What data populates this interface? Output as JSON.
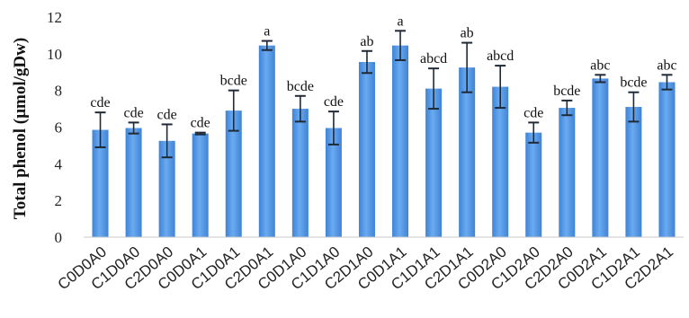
{
  "chart_data": {
    "type": "bar",
    "ylabel": "Total phenol (µmol/gDw)",
    "ylim": [
      0,
      12
    ],
    "yticks": [
      0,
      2,
      4,
      6,
      8,
      10,
      12
    ],
    "grid": false,
    "bar_color": "#4a90e2",
    "error_bar_color": "#1f2a36",
    "categories": [
      "C0D0A0",
      "C1D0A0",
      "C2D0A0",
      "C0D0A1",
      "C1D0A1",
      "C2D0A1",
      "C0D1A0",
      "C1D1A0",
      "C2D1A0",
      "C0D1A1",
      "C1D1A1",
      "C2D1A1",
      "C0D2A0",
      "C1D2A0",
      "C2D2A0",
      "C0D2A1",
      "C1D2A1",
      "C2D2A1"
    ],
    "values": [
      5.85,
      5.95,
      5.25,
      5.65,
      6.9,
      10.45,
      7.0,
      5.95,
      9.55,
      10.45,
      8.1,
      9.25,
      8.2,
      5.7,
      7.05,
      8.65,
      7.1,
      8.45
    ],
    "errors": [
      0.95,
      0.3,
      0.9,
      0.05,
      1.1,
      0.25,
      0.7,
      0.9,
      0.6,
      0.8,
      1.1,
      1.35,
      1.15,
      0.55,
      0.4,
      0.2,
      0.8,
      0.4
    ],
    "significance": [
      "cde",
      "cde",
      "cde",
      "cde",
      "bcde",
      "a",
      "bcde",
      "cde",
      "ab",
      "a",
      "abcd",
      "ab",
      "abcd",
      "cde",
      "bcde",
      "abc",
      "bcde",
      "abc"
    ]
  }
}
